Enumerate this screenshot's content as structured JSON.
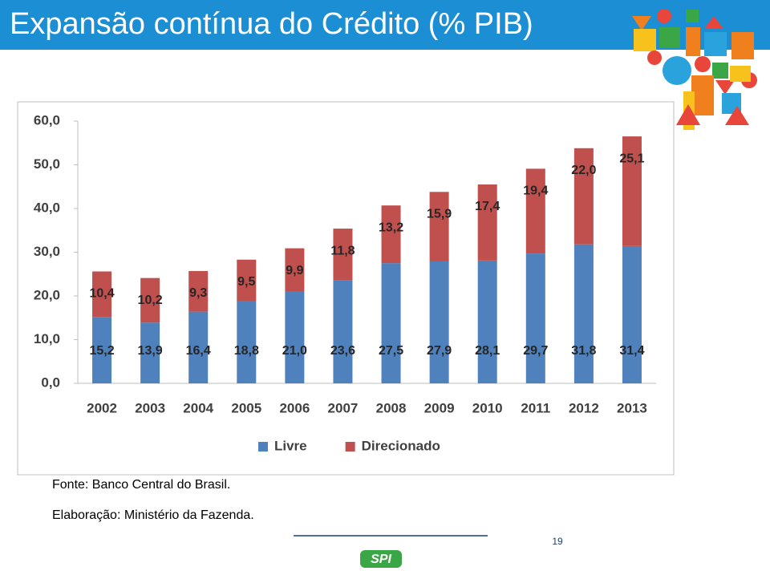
{
  "chart_data": {
    "type": "stacked_bar",
    "categories": [
      "2002",
      "2003",
      "2004",
      "2005",
      "2006",
      "2007",
      "2008",
      "2009",
      "2010",
      "2011",
      "2012",
      "2013"
    ],
    "series": [
      {
        "name": "Livre",
        "color": "#4f81bd",
        "values": [
          15.2,
          13.9,
          16.4,
          18.8,
          21.0,
          23.6,
          27.5,
          27.9,
          28.1,
          29.7,
          31.8,
          31.4
        ],
        "value_labels": [
          "15,2",
          "13,9",
          "16,4",
          "18,8",
          "21,0",
          "23,6",
          "27,5",
          "27,9",
          "28,1",
          "29,7",
          "31,8",
          "31,4"
        ]
      },
      {
        "name": "Direcionado",
        "color": "#c0504d",
        "values": [
          10.4,
          10.2,
          9.3,
          9.5,
          9.9,
          11.8,
          13.2,
          15.9,
          17.4,
          19.4,
          22.0,
          25.1
        ],
        "value_labels": [
          "10,4",
          "10,2",
          "9,3",
          "9,5",
          "9,9",
          "11,8",
          "13,2",
          "15,9",
          "17,4",
          "19,4",
          "22,0",
          "25,1"
        ]
      }
    ],
    "ylim": [
      0,
      60
    ],
    "yticks": [
      {
        "value": 0,
        "label": "0,0"
      },
      {
        "value": 10,
        "label": "10,0"
      },
      {
        "value": 20,
        "label": "20,0"
      },
      {
        "value": 30,
        "label": "30,0"
      },
      {
        "value": 40,
        "label": "40,0"
      },
      {
        "value": 50,
        "label": "50,0"
      },
      {
        "value": 60,
        "label": "60,0"
      }
    ],
    "legend": "bottom"
  },
  "header": {
    "title": "Expansão contínua do Crédito (% PIB)"
  },
  "footer": {
    "source": "Fonte: Banco Central do Brasil.",
    "credit": "Elaboração: Ministério da Fazenda.",
    "page_number": "19",
    "logo": "SPI"
  }
}
